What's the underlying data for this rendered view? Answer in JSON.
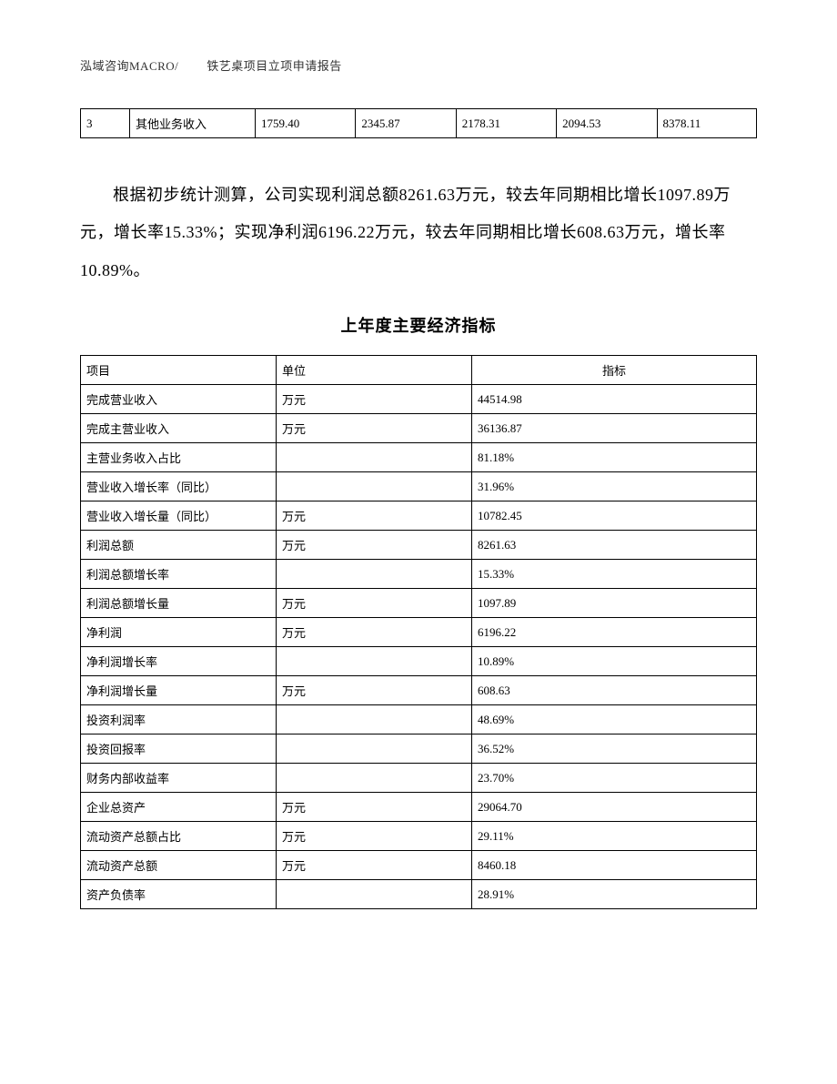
{
  "header": {
    "left": "泓域咨询MACRO/",
    "right": "铁艺桌项目立项申请报告"
  },
  "small_table": {
    "rows": [
      {
        "c1": "3",
        "c2": "其他业务收入",
        "c3": "1759.40",
        "c4": "2345.87",
        "c5": "2178.31",
        "c6": "2094.53",
        "c7": "8378.11"
      }
    ]
  },
  "paragraph": "根据初步统计测算，公司实现利润总额8261.63万元，较去年同期相比增长1097.89万元，增长率15.33%；实现净利润6196.22万元，较去年同期相比增长608.63万元，增长率10.89%。",
  "section_title": "上年度主要经济指标",
  "main_table": {
    "columns": {
      "c1": "项目",
      "c2": "单位",
      "c3": "指标"
    },
    "rows": [
      {
        "c1": "完成营业收入",
        "c2": "万元",
        "c3": "44514.98"
      },
      {
        "c1": "完成主营业收入",
        "c2": "万元",
        "c3": "36136.87"
      },
      {
        "c1": "主营业务收入占比",
        "c2": "",
        "c3": "81.18%"
      },
      {
        "c1": "营业收入增长率（同比）",
        "c2": "",
        "c3": "31.96%"
      },
      {
        "c1": "营业收入增长量（同比）",
        "c2": "万元",
        "c3": "10782.45"
      },
      {
        "c1": "利润总额",
        "c2": "万元",
        "c3": "8261.63"
      },
      {
        "c1": "利润总额增长率",
        "c2": "",
        "c3": "15.33%"
      },
      {
        "c1": "利润总额增长量",
        "c2": "万元",
        "c3": "1097.89"
      },
      {
        "c1": "净利润",
        "c2": "万元",
        "c3": "6196.22"
      },
      {
        "c1": "净利润增长率",
        "c2": "",
        "c3": "10.89%"
      },
      {
        "c1": "净利润增长量",
        "c2": "万元",
        "c3": "608.63"
      },
      {
        "c1": "投资利润率",
        "c2": "",
        "c3": "48.69%"
      },
      {
        "c1": "投资回报率",
        "c2": "",
        "c3": "36.52%"
      },
      {
        "c1": "财务内部收益率",
        "c2": "",
        "c3": "23.70%"
      },
      {
        "c1": "企业总资产",
        "c2": "万元",
        "c3": "29064.70"
      },
      {
        "c1": "流动资产总额占比",
        "c2": "万元",
        "c3": "29.11%"
      },
      {
        "c1": "流动资产总额",
        "c2": "万元",
        "c3": "8460.18"
      },
      {
        "c1": "资产负债率",
        "c2": "",
        "c3": "28.91%"
      }
    ]
  },
  "colors": {
    "text": "#000000",
    "border": "#000000",
    "background": "#ffffff"
  },
  "typography": {
    "body_font": "SimSun",
    "header_fontsize": 13,
    "paragraph_fontsize": 18,
    "table_fontsize": 13,
    "title_fontsize": 18
  }
}
